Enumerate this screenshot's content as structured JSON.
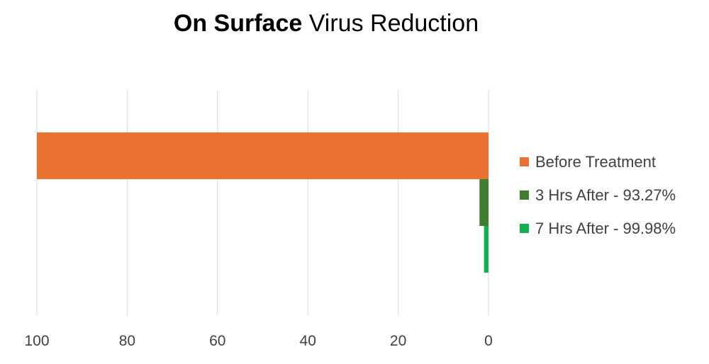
{
  "chart_data": {
    "type": "bar",
    "orientation": "horizontal",
    "title_bold": "On Surface",
    "title_rest": "Virus Reduction",
    "xlim": [
      100,
      0
    ],
    "x_reversed": true,
    "xticks": [
      "100",
      "80",
      "60",
      "40",
      "20",
      "0"
    ],
    "grid": true,
    "legend_position": "right",
    "series": [
      {
        "name": "Before Treatment",
        "value": 100,
        "color": "#E97132"
      },
      {
        "name": "3 Hrs After - 93.27%",
        "value": 2,
        "color": "#3E7E2F"
      },
      {
        "name": "7 Hrs After - 99.98%",
        "value": 1,
        "color": "#12B04F"
      }
    ]
  }
}
